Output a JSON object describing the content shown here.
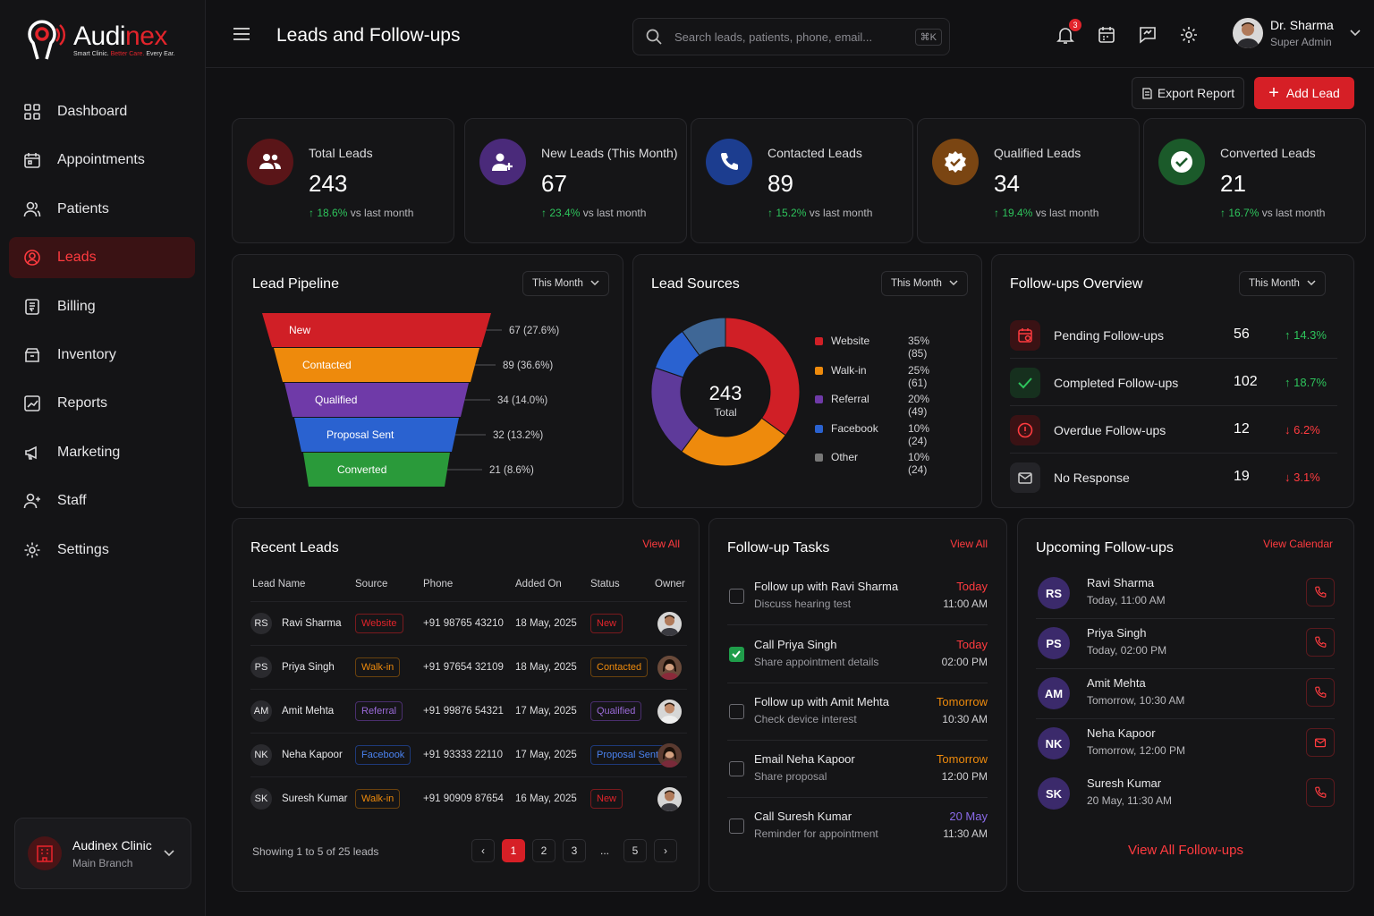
{
  "brand": {
    "name_part1": "Audi",
    "name_part2": "nex",
    "tagline_part1": "Smart Clinic. ",
    "tagline_part2": "Better Care.",
    "tagline_part3": " Every Ear."
  },
  "sidebar": {
    "items": [
      {
        "label": "Dashboard",
        "icon": "grid-icon"
      },
      {
        "label": "Appointments",
        "icon": "calendar-icon"
      },
      {
        "label": "Patients",
        "icon": "users-icon"
      },
      {
        "label": "Leads",
        "icon": "target-icon",
        "active": true
      },
      {
        "label": "Billing",
        "icon": "receipt-icon"
      },
      {
        "label": "Inventory",
        "icon": "box-icon"
      },
      {
        "label": "Reports",
        "icon": "chart-icon"
      },
      {
        "label": "Marketing",
        "icon": "megaphone-icon"
      },
      {
        "label": "Staff",
        "icon": "staff-icon"
      },
      {
        "label": "Settings",
        "icon": "gear-icon"
      }
    ],
    "clinic": {
      "name": "Audinex Clinic",
      "branch": "Main Branch"
    }
  },
  "header": {
    "title": "Leads and Follow-ups",
    "search_placeholder": "Search leads, patients, phone, email...",
    "search_shortcut": "⌘K",
    "notification_count": "3",
    "user_name": "Dr. Sharma",
    "user_role": "Super Admin"
  },
  "actions": {
    "export_label": "Export Report",
    "add_label": "Add Lead"
  },
  "kpis": [
    {
      "label": "Total Leads",
      "value": "243",
      "trend": "18.6%",
      "trend_suffix": " vs last month",
      "color": "#5a1518",
      "icon": "users-icon"
    },
    {
      "label": "New Leads (This Month)",
      "value": "67",
      "trend": "23.4%",
      "trend_suffix": " vs last month",
      "color": "#4a2a7a",
      "icon": "user-plus-icon"
    },
    {
      "label": "Contacted Leads",
      "value": "89",
      "trend": "15.2%",
      "trend_suffix": " vs last month",
      "color": "#1c3d8f",
      "icon": "phone-icon"
    },
    {
      "label": "Qualified Leads",
      "value": "34",
      "trend": "19.4%",
      "trend_suffix": " vs last month",
      "color": "#7a4512",
      "icon": "badge-check-icon"
    },
    {
      "label": "Converted Leads",
      "value": "21",
      "trend": "16.7%",
      "trend_suffix": " vs last month",
      "color": "#1b5a2a",
      "icon": "check-circle-icon"
    }
  ],
  "pipeline": {
    "title": "Lead Pipeline",
    "period": "This Month",
    "stages": [
      {
        "label": "New",
        "value_text": "67 (27.6%)",
        "color": "#d01f26"
      },
      {
        "label": "Contacted",
        "value_text": "89 (36.6%)",
        "color": "#ee8a0c"
      },
      {
        "label": "Qualified",
        "value_text": "34 (14.0%)",
        "color": "#6f3aa8"
      },
      {
        "label": "Proposal Sent",
        "value_text": "32 (13.2%)",
        "color": "#2a62d0"
      },
      {
        "label": "Converted",
        "value_text": "21 (8.6%)",
        "color": "#2a9a3a"
      }
    ]
  },
  "sources": {
    "title": "Lead Sources",
    "period": "This Month",
    "total": "243",
    "total_label": "Total",
    "items": [
      {
        "label": "Website",
        "pct": "35% (85)",
        "value": 85,
        "color": "#d01f26"
      },
      {
        "label": "Walk-in",
        "pct": "25% (61)",
        "value": 61,
        "color": "#ee8a0c"
      },
      {
        "label": "Referral",
        "pct": "20% (49)",
        "value": 49,
        "color": "#5e3a9a"
      },
      {
        "label": "Facebook",
        "pct": "10% (24)",
        "value": 24,
        "color": "#2a62d0"
      },
      {
        "label": "Other",
        "pct": "10% (24)",
        "value": 24,
        "color": "#3f6796"
      }
    ]
  },
  "followups_overview": {
    "title": "Follow-ups Overview",
    "period": "This Month",
    "rows": [
      {
        "label": "Pending Follow-ups",
        "value": "56",
        "trend": "↑ 14.3%",
        "dir": "up",
        "icon": "calendar-pending-icon"
      },
      {
        "label": "Completed Follow-ups",
        "value": "102",
        "trend": "↑ 18.7%",
        "dir": "up",
        "icon": "check-icon"
      },
      {
        "label": "Overdue Follow-ups",
        "value": "12",
        "trend": "↓ 6.2%",
        "dir": "down",
        "icon": "alert-icon"
      },
      {
        "label": "No Response",
        "value": "19",
        "trend": "↓ 3.1%",
        "dir": "down",
        "icon": "mail-icon"
      }
    ]
  },
  "recent_leads": {
    "title": "Recent Leads",
    "view_all": "View All",
    "columns": [
      "Lead Name",
      "Source",
      "Phone",
      "Added On",
      "Status",
      "Owner"
    ],
    "rows": [
      {
        "initials": "RS",
        "name": "Ravi Sharma",
        "source": "Website",
        "source_color": "#e2242b",
        "phone": "+91 98765 43210",
        "date": "18 May, 2025",
        "status": "New",
        "status_color": "#e2242b"
      },
      {
        "initials": "PS",
        "name": "Priya Singh",
        "source": "Walk-in",
        "source_color": "#ee8a0c",
        "phone": "+91 97654 32109",
        "date": "18 May, 2025",
        "status": "Contacted",
        "status_color": "#ee8a0c"
      },
      {
        "initials": "AM",
        "name": "Amit Mehta",
        "source": "Referral",
        "source_color": "#9a6ad8",
        "phone": "+91 99876 54321",
        "date": "17 May, 2025",
        "status": "Qualified",
        "status_color": "#9a6ad8"
      },
      {
        "initials": "NK",
        "name": "Neha Kapoor",
        "source": "Facebook",
        "source_color": "#4a82f0",
        "phone": "+91 93333 22110",
        "date": "17 May, 2025",
        "status": "Proposal Sent",
        "status_color": "#4a82f0"
      },
      {
        "initials": "SK",
        "name": "Suresh Kumar",
        "source": "Walk-in",
        "source_color": "#ee8a0c",
        "phone": "+91 90909 87654",
        "date": "16 May, 2025",
        "status": "New",
        "status_color": "#e2242b"
      }
    ],
    "footer": "Showing 1 to 5 of 25 leads",
    "pages": [
      "‹",
      "1",
      "2",
      "3",
      "...",
      "5",
      "›"
    ]
  },
  "tasks": {
    "title": "Follow-up Tasks",
    "view_all": "View All",
    "items": [
      {
        "title": "Follow up with Ravi Sharma",
        "sub": "Discuss hearing test",
        "day": "Today",
        "time": "11:00 AM",
        "day_color": "#ff3b3f",
        "done": false
      },
      {
        "title": "Call Priya Singh",
        "sub": "Share appointment details",
        "day": "Today",
        "time": "02:00 PM",
        "day_color": "#ff3b3f",
        "done": true
      },
      {
        "title": "Follow up with Amit Mehta",
        "sub": "Check device interest",
        "day": "Tomorrow",
        "time": "10:30 AM",
        "day_color": "#ee8a0c",
        "done": false
      },
      {
        "title": "Email Neha Kapoor",
        "sub": "Share proposal",
        "day": "Tomorrow",
        "time": "12:00 PM",
        "day_color": "#ee8a0c",
        "done": false
      },
      {
        "title": "Call Suresh Kumar",
        "sub": "Reminder for appointment",
        "day": "20 May",
        "time": "11:30 AM",
        "day_color": "#8a6ae8",
        "done": false
      }
    ]
  },
  "upcoming": {
    "title": "Upcoming Follow-ups",
    "view_calendar": "View Calendar",
    "items": [
      {
        "initials": "RS",
        "name": "Ravi Sharma",
        "time": "Today, 11:00 AM",
        "action": "phone-icon"
      },
      {
        "initials": "PS",
        "name": "Priya Singh",
        "time": "Today, 02:00 PM",
        "action": "phone-icon"
      },
      {
        "initials": "AM",
        "name": "Amit Mehta",
        "time": "Tomorrow, 10:30 AM",
        "action": "phone-icon"
      },
      {
        "initials": "NK",
        "name": "Neha Kapoor",
        "time": "Tomorrow, 12:00 PM",
        "action": "mail-icon"
      },
      {
        "initials": "SK",
        "name": "Suresh Kumar",
        "time": "20 May, 11:30 AM",
        "action": "phone-icon"
      }
    ],
    "view_all": "View All Follow-ups"
  }
}
